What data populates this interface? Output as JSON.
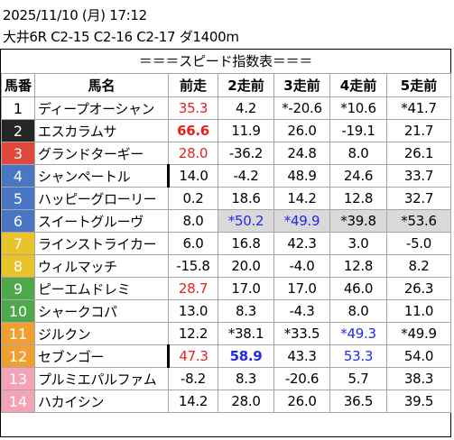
{
  "header": {
    "line1": "2025/11/10 (月) 17:12",
    "line2": "大井6R C2-15 C2-16 C2-17 ダ1400m"
  },
  "banner": "＝＝＝スピード指数表＝＝＝",
  "columns": [
    "馬番",
    "馬名",
    "前走",
    "2走前",
    "3走前",
    "4走前",
    "5走前"
  ],
  "colors": {
    "red": "#e8211b",
    "blue": "#1f2be8",
    "shade": "#d9d9d9"
  },
  "rows": [
    {
      "num": "1",
      "numBg": "#ffffff",
      "numFg": "#000000",
      "name": "ディープオーシャン",
      "cells": [
        {
          "v": "35.3",
          "c": "red"
        },
        {
          "v": "4.2"
        },
        {
          "v": "*-20.6"
        },
        {
          "v": "*10.6"
        },
        {
          "v": "*41.7"
        }
      ]
    },
    {
      "num": "2",
      "numBg": "#262626",
      "numFg": "#ffffff",
      "name": "エスカラムサ",
      "cells": [
        {
          "v": "66.6",
          "c": "red",
          "b": true
        },
        {
          "v": "11.9"
        },
        {
          "v": "26.0"
        },
        {
          "v": "-19.1"
        },
        {
          "v": "21.7"
        }
      ]
    },
    {
      "num": "3",
      "numBg": "#e0483c",
      "numFg": "#ffffff",
      "name": "グランドターギー",
      "cells": [
        {
          "v": "28.0",
          "c": "red"
        },
        {
          "v": "-36.2"
        },
        {
          "v": "24.8"
        },
        {
          "v": "8.0"
        },
        {
          "v": "26.1"
        }
      ]
    },
    {
      "num": "4",
      "numBg": "#4a76c4",
      "numFg": "#ffffff",
      "name": "シャンペートル",
      "sep": true,
      "cells": [
        {
          "v": "14.0"
        },
        {
          "v": "-4.2"
        },
        {
          "v": "48.9"
        },
        {
          "v": "24.6"
        },
        {
          "v": "33.7"
        }
      ]
    },
    {
      "num": "5",
      "numBg": "#4a76c4",
      "numFg": "#ffffff",
      "name": "ハッピーグローリー",
      "cells": [
        {
          "v": "0.2"
        },
        {
          "v": "18.6"
        },
        {
          "v": "14.2"
        },
        {
          "v": "12.8"
        },
        {
          "v": "32.7"
        }
      ]
    },
    {
      "num": "6",
      "numBg": "#4a76c4",
      "numFg": "#ffffff",
      "name": "スイートグルーヴ",
      "cells": [
        {
          "v": "8.0"
        },
        {
          "v": "*50.2",
          "c": "blue",
          "s": true
        },
        {
          "v": "*49.9",
          "c": "blue",
          "s": true
        },
        {
          "v": "*39.8",
          "s": true
        },
        {
          "v": "*53.6",
          "s": true
        }
      ]
    },
    {
      "num": "7",
      "numBg": "#e8c42a",
      "numFg": "#ffffff",
      "name": "ラインストライカー",
      "cells": [
        {
          "v": "6.0"
        },
        {
          "v": "16.8"
        },
        {
          "v": "42.3"
        },
        {
          "v": "3.0"
        },
        {
          "v": "-5.0"
        }
      ]
    },
    {
      "num": "8",
      "numBg": "#e8c42a",
      "numFg": "#ffffff",
      "name": "ウィルマッチ",
      "cells": [
        {
          "v": "-15.8"
        },
        {
          "v": "20.0"
        },
        {
          "v": "-4.0"
        },
        {
          "v": "12.8"
        },
        {
          "v": "8.2"
        }
      ]
    },
    {
      "num": "9",
      "numBg": "#4fa84a",
      "numFg": "#ffffff",
      "name": "ピーエムドレミ",
      "cells": [
        {
          "v": "28.7",
          "c": "red"
        },
        {
          "v": "17.0"
        },
        {
          "v": "17.0"
        },
        {
          "v": "46.0"
        },
        {
          "v": "26.3"
        }
      ]
    },
    {
      "num": "10",
      "numBg": "#4fa84a",
      "numFg": "#ffffff",
      "name": "シャークコパ",
      "cells": [
        {
          "v": "13.0"
        },
        {
          "v": "8.3"
        },
        {
          "v": "-4.3"
        },
        {
          "v": "8.0"
        },
        {
          "v": "11.0"
        }
      ]
    },
    {
      "num": "11",
      "numBg": "#f0a030",
      "numFg": "#ffffff",
      "name": "ジルクン",
      "cells": [
        {
          "v": "12.2"
        },
        {
          "v": "*38.1"
        },
        {
          "v": "*33.5"
        },
        {
          "v": "*49.3",
          "c": "blue"
        },
        {
          "v": "*49.9"
        }
      ]
    },
    {
      "num": "12",
      "numBg": "#f0a030",
      "numFg": "#ffffff",
      "name": "セブンゴー",
      "sep": true,
      "cells": [
        {
          "v": "47.3",
          "c": "red"
        },
        {
          "v": "58.9",
          "c": "blue",
          "b": true
        },
        {
          "v": "43.3"
        },
        {
          "v": "53.3",
          "c": "blue"
        },
        {
          "v": "54.0"
        }
      ]
    },
    {
      "num": "13",
      "numBg": "#f2a3b5",
      "numFg": "#ffffff",
      "name": "プルミエパルファム",
      "cells": [
        {
          "v": "-8.2"
        },
        {
          "v": "8.3"
        },
        {
          "v": "-20.6"
        },
        {
          "v": "5.7"
        },
        {
          "v": "38.3"
        }
      ]
    },
    {
      "num": "14",
      "numBg": "#f2a3b5",
      "numFg": "#ffffff",
      "name": "ハカイシン",
      "cells": [
        {
          "v": "14.2"
        },
        {
          "v": "28.0"
        },
        {
          "v": "26.0"
        },
        {
          "v": "36.5"
        },
        {
          "v": "39.5"
        }
      ]
    }
  ]
}
